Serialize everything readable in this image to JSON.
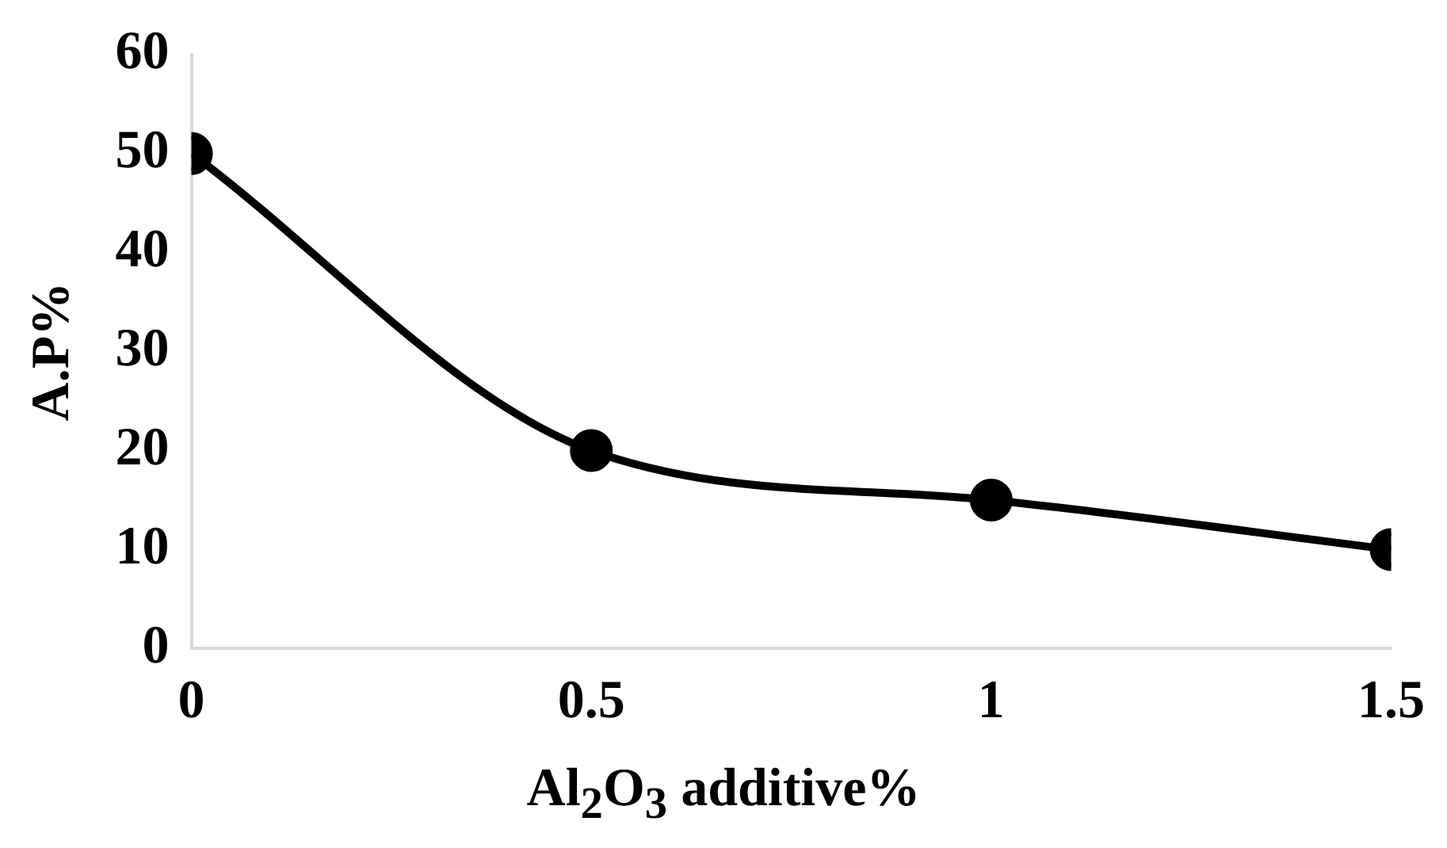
{
  "chart_data": {
    "type": "line",
    "xlabel": "Al$_{2}$O$_{3}$ additive%",
    "ylabel": "A.P%",
    "x": [
      0,
      0.5,
      1,
      1.5
    ],
    "series": [
      {
        "color": "#000000",
        "values": [
          50,
          20,
          15,
          10
        ]
      }
    ],
    "xlim": [
      0,
      1.5
    ],
    "xticks": [
      0,
      0.5,
      1,
      1.5
    ],
    "ylim": [
      0,
      60
    ],
    "yticks": [
      0,
      10,
      20,
      30,
      40,
      50,
      60
    ],
    "grid": false,
    "marker": "circle",
    "line_style": "solid"
  }
}
